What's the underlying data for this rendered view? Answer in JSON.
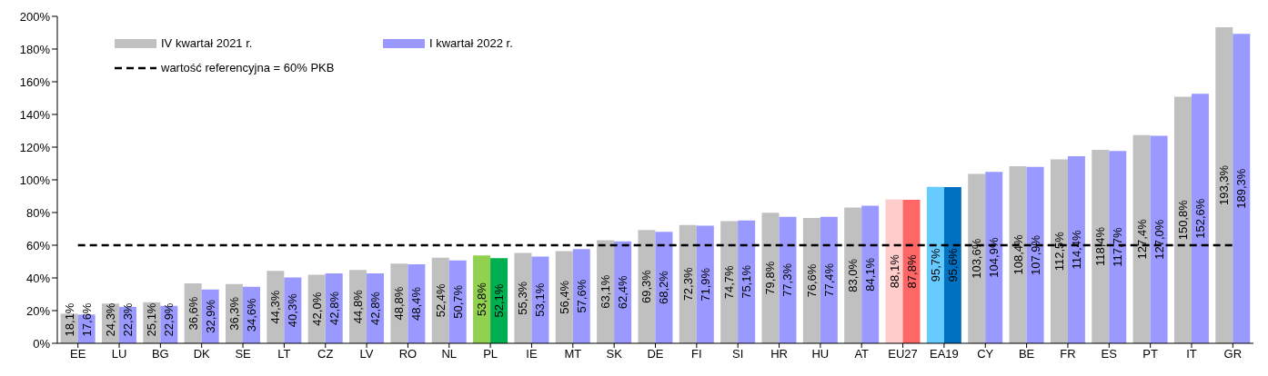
{
  "chart_data": {
    "type": "bar",
    "categories": [
      "EE",
      "LU",
      "BG",
      "DK",
      "SE",
      "LT",
      "CZ",
      "LV",
      "RO",
      "NL",
      "PL",
      "IE",
      "MT",
      "SK",
      "DE",
      "FI",
      "SI",
      "HR",
      "HU",
      "AT",
      "EU27",
      "EA19",
      "CY",
      "BE",
      "FR",
      "ES",
      "PT",
      "IT",
      "GR"
    ],
    "series": [
      {
        "name": "IV kwartał 2021 r.",
        "color": "#c0c0c0",
        "colors": [
          "#c0c0c0",
          "#c0c0c0",
          "#c0c0c0",
          "#c0c0c0",
          "#c0c0c0",
          "#c0c0c0",
          "#c0c0c0",
          "#c0c0c0",
          "#c0c0c0",
          "#c0c0c0",
          "#92d050",
          "#c0c0c0",
          "#c0c0c0",
          "#c0c0c0",
          "#c0c0c0",
          "#c0c0c0",
          "#c0c0c0",
          "#c0c0c0",
          "#c0c0c0",
          "#c0c0c0",
          "#ffcccc",
          "#66ccff",
          "#c0c0c0",
          "#c0c0c0",
          "#c0c0c0",
          "#c0c0c0",
          "#c0c0c0",
          "#c0c0c0",
          "#c0c0c0"
        ],
        "values": [
          18.1,
          24.3,
          25.1,
          36.6,
          36.3,
          44.3,
          42.0,
          44.8,
          48.8,
          52.4,
          53.8,
          55.3,
          56.4,
          63.1,
          69.3,
          72.3,
          74.7,
          79.8,
          76.6,
          83.0,
          88.1,
          95.7,
          103.6,
          108.4,
          112.5,
          118.4,
          127.4,
          150.8,
          193.3
        ],
        "value_labels": [
          "18,1%",
          "24,3%",
          "25,1%",
          "36,6%",
          "36,3%",
          "44,3%",
          "42,0%",
          "44,8%",
          "48,8%",
          "52,4%",
          "53,8%",
          "55,3%",
          "56,4%",
          "63,1%",
          "69,3%",
          "72,3%",
          "74,7%",
          "79,8%",
          "76,6%",
          "83,0%",
          "88,1%",
          "95,7%",
          "103,6%",
          "108,4%",
          "112,5%",
          "118,4%",
          "127,4%",
          "150,8%",
          "193,3%"
        ]
      },
      {
        "name": "I kwartał 2022 r.",
        "color": "#9999ff",
        "colors": [
          "#9999ff",
          "#9999ff",
          "#9999ff",
          "#9999ff",
          "#9999ff",
          "#9999ff",
          "#9999ff",
          "#9999ff",
          "#9999ff",
          "#9999ff",
          "#00b050",
          "#9999ff",
          "#9999ff",
          "#9999ff",
          "#9999ff",
          "#9999ff",
          "#9999ff",
          "#9999ff",
          "#9999ff",
          "#9999ff",
          "#ff6666",
          "#0070c0",
          "#9999ff",
          "#9999ff",
          "#9999ff",
          "#9999ff",
          "#9999ff",
          "#9999ff",
          "#9999ff"
        ],
        "values": [
          17.6,
          22.3,
          22.9,
          32.9,
          34.6,
          40.3,
          42.8,
          42.8,
          48.4,
          50.7,
          52.1,
          53.1,
          57.6,
          62.4,
          68.2,
          71.9,
          75.1,
          77.3,
          77.4,
          84.1,
          87.8,
          95.6,
          104.9,
          107.9,
          114.4,
          117.7,
          127.0,
          152.6,
          189.3
        ],
        "value_labels": [
          "17,6%",
          "22,3%",
          "22,9%",
          "32,9%",
          "34,6%",
          "40,3%",
          "42,8%",
          "42,8%",
          "48,4%",
          "50,7%",
          "52,1%",
          "53,1%",
          "57,6%",
          "62,4%",
          "68,2%",
          "71,9%",
          "75,1%",
          "77,3%",
          "77,4%",
          "84,1%",
          "87,8%",
          "95,6%",
          "104,9%",
          "107,9%",
          "114,4%",
          "117,7%",
          "127,0%",
          "152,6%",
          "189,3%"
        ]
      }
    ],
    "ylim": [
      0,
      200
    ],
    "yticks": [
      {
        "value": 0,
        "label": "0%"
      },
      {
        "value": 20,
        "label": "20%"
      },
      {
        "value": 40,
        "label": "40%"
      },
      {
        "value": 60,
        "label": "60%"
      },
      {
        "value": 80,
        "label": "80%"
      },
      {
        "value": 100,
        "label": "100%"
      },
      {
        "value": 120,
        "label": "120%"
      },
      {
        "value": 140,
        "label": "140%"
      },
      {
        "value": 160,
        "label": "160%"
      },
      {
        "value": 180,
        "label": "180%"
      },
      {
        "value": 200,
        "label": "200%"
      }
    ],
    "ref_lines": [
      {
        "axis": "y",
        "value": 60,
        "label": "wartość referencyjna = 60% PKB",
        "color": "#000000",
        "line_style": "dashed"
      }
    ],
    "grid": false,
    "legend": "top left"
  }
}
